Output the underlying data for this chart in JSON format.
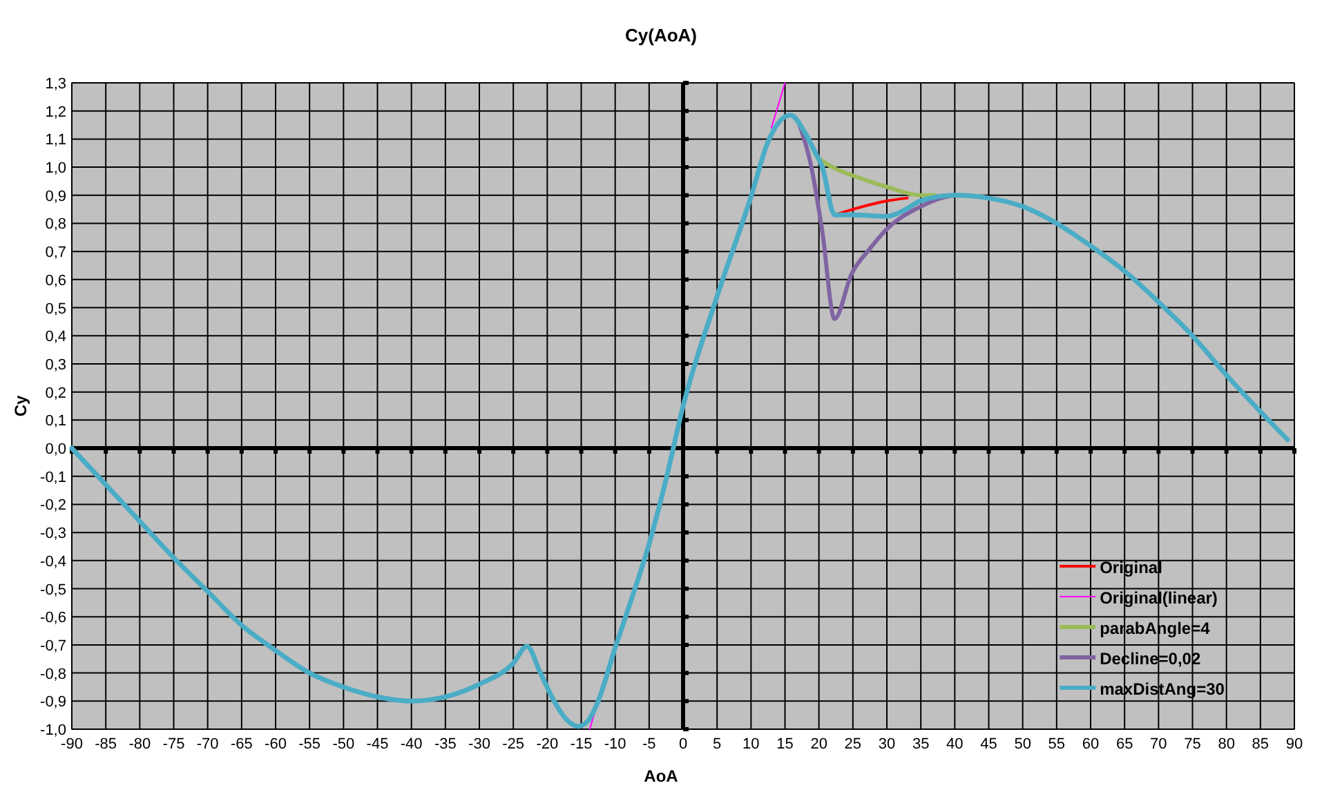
{
  "chart_data": {
    "type": "line",
    "title": "Cy(AoA)",
    "xlabel": "AoA",
    "ylabel": "Cy",
    "xlim": [
      -90,
      90
    ],
    "xticks": [
      -90,
      -85,
      -80,
      -75,
      -70,
      -65,
      -60,
      -55,
      -50,
      -45,
      -40,
      -35,
      -30,
      -25,
      -20,
      -15,
      -10,
      -5,
      0,
      5,
      10,
      15,
      20,
      25,
      30,
      35,
      40,
      45,
      50,
      55,
      60,
      65,
      70,
      75,
      80,
      85,
      90
    ],
    "ylim": [
      -1.0,
      1.3
    ],
    "yticks": [
      {
        "value": -1.0,
        "label": "-1,0"
      },
      {
        "value": -0.9,
        "label": "-0,9"
      },
      {
        "value": -0.8,
        "label": "-0,8"
      },
      {
        "value": -0.7,
        "label": "-0,7"
      },
      {
        "value": -0.6,
        "label": "-0,6"
      },
      {
        "value": -0.5,
        "label": "-0,5"
      },
      {
        "value": -0.4,
        "label": "-0,4"
      },
      {
        "value": -0.3,
        "label": "-0,3"
      },
      {
        "value": -0.2,
        "label": "-0,2"
      },
      {
        "value": -0.1,
        "label": "-0,1"
      },
      {
        "value": 0.0,
        "label": "0,0"
      },
      {
        "value": 0.1,
        "label": "0,1"
      },
      {
        "value": 0.2,
        "label": "0,2"
      },
      {
        "value": 0.3,
        "label": "0,3"
      },
      {
        "value": 0.4,
        "label": "0,4"
      },
      {
        "value": 0.5,
        "label": "0,5"
      },
      {
        "value": 0.6,
        "label": "0,6"
      },
      {
        "value": 0.7,
        "label": "0,7"
      },
      {
        "value": 0.8,
        "label": "0,8"
      },
      {
        "value": 0.9,
        "label": "0,9"
      },
      {
        "value": 1.0,
        "label": "1,0"
      },
      {
        "value": 1.1,
        "label": "1,1"
      },
      {
        "value": 1.2,
        "label": "1,2"
      },
      {
        "value": 1.3,
        "label": "1,3"
      }
    ],
    "grid": true,
    "legend": "bottom right",
    "series": [
      {
        "name": "Original",
        "color": "#ff0000",
        "x": [
          22.3,
          25,
          30,
          33
        ],
        "values": [
          0.83,
          0.85,
          0.88,
          0.89
        ]
      },
      {
        "name": "Original(linear)",
        "color": "#ff00ff",
        "x": [
          -13.75,
          -13,
          0,
          13,
          15
        ],
        "values": [
          -1.0,
          -0.94,
          null,
          1.14,
          1.3
        ]
      },
      {
        "name": "parabAngle=4",
        "color": "#9bbb59",
        "x": [
          20,
          22,
          25,
          30,
          35,
          37
        ],
        "values": [
          1.03,
          1.0,
          0.97,
          0.93,
          0.9,
          0.9
        ]
      },
      {
        "name": "Decline=0,02",
        "color": "#8064a2",
        "x": [
          17,
          18.8,
          20.5,
          22.3,
          24.8,
          27.5,
          30,
          35,
          38,
          40
        ],
        "values": [
          1.16,
          1.01,
          0.77,
          0.46,
          0.62,
          0.71,
          0.78,
          0.86,
          0.89,
          0.9
        ]
      },
      {
        "name": "maxDistAng=30",
        "color": "#4bacc6",
        "x": [
          -90,
          -85,
          -80,
          -75,
          -70,
          -65,
          -60,
          -55,
          -50,
          -45,
          -40,
          -35,
          -30,
          -25,
          -23,
          -21,
          -19,
          -17,
          -15.5,
          -14,
          -12.5,
          -10,
          -7.5,
          -5,
          -2.5,
          0,
          5,
          10,
          12.5,
          15.8,
          18,
          19.5,
          20.5,
          22.3,
          25,
          30,
          32,
          35,
          40,
          45,
          50,
          55,
          60,
          65,
          70,
          75,
          80,
          85,
          89
        ],
        "values": [
          0.0,
          -0.13,
          -0.26,
          -0.39,
          -0.51,
          -0.63,
          -0.72,
          -0.8,
          -0.85,
          -0.885,
          -0.9,
          -0.885,
          -0.84,
          -0.765,
          -0.705,
          -0.8,
          -0.9,
          -0.97,
          -0.99,
          -0.97,
          -0.9,
          -0.71,
          -0.53,
          -0.34,
          -0.11,
          0.15,
          0.54,
          0.895,
          1.09,
          1.185,
          1.12,
          1.05,
          1.0,
          0.83,
          0.83,
          0.825,
          0.84,
          0.88,
          0.9,
          0.89,
          0.86,
          0.8,
          0.72,
          0.63,
          0.52,
          0.4,
          0.26,
          0.13,
          0.03
        ]
      }
    ]
  }
}
